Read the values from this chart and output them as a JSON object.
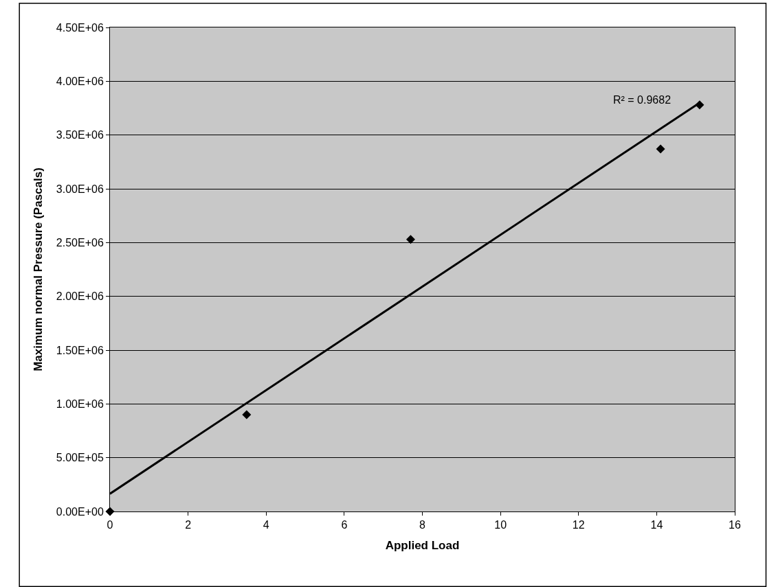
{
  "chart_data": {
    "type": "scatter",
    "xlabel": "Applied Load",
    "ylabel": "Maximum normal Pressure (Pascals)",
    "x": [
      0,
      3.5,
      7.7,
      14.1,
      15.1
    ],
    "series": [
      {
        "color": "#000000",
        "marker": "diamond",
        "values": [
          0,
          900000,
          2530000,
          3370000,
          3780000
        ]
      },
      {
        "type": "line",
        "color": "#000000",
        "marker": "none",
        "line_style": "solid",
        "x": [
          0,
          15.1
        ],
        "values": [
          165000,
          3800000
        ]
      }
    ],
    "annotations": [
      "R² = 0.9682"
    ],
    "xlim": [
      0,
      16
    ],
    "xticks": [
      0,
      2,
      4,
      6,
      8,
      10,
      12,
      14,
      16
    ],
    "ylim": [
      0,
      4500000
    ],
    "yticks": [
      {
        "value": 0,
        "label": "0.00E+00"
      },
      {
        "value": 500000,
        "label": "5.00E+05"
      },
      {
        "value": 1000000,
        "label": "1.00E+06"
      },
      {
        "value": 1500000,
        "label": "1.50E+06"
      },
      {
        "value": 2000000,
        "label": "2.00E+06"
      },
      {
        "value": 2500000,
        "label": "2.50E+06"
      },
      {
        "value": 3000000,
        "label": "3.00E+06"
      },
      {
        "value": 3500000,
        "label": "3.50E+06"
      },
      {
        "value": 4000000,
        "label": "4.00E+06"
      },
      {
        "value": 4500000,
        "label": "4.50E+06"
      }
    ],
    "grid": "y"
  }
}
